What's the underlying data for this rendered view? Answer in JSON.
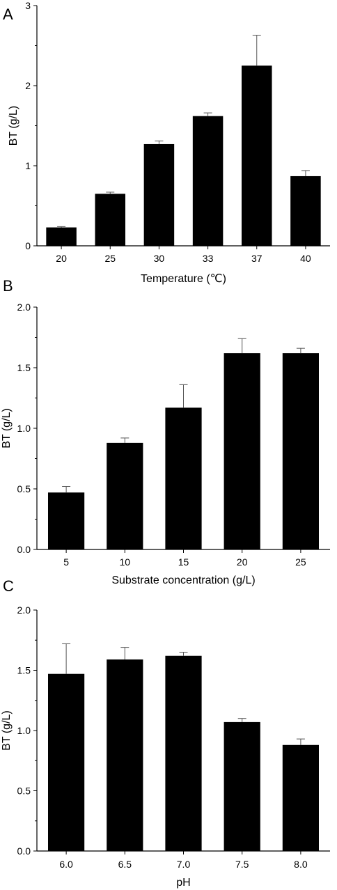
{
  "chart_data": [
    {
      "type": "bar",
      "panel_label": "A",
      "categories": [
        "20",
        "25",
        "30",
        "33",
        "37",
        "40"
      ],
      "values": [
        0.23,
        0.65,
        1.27,
        1.62,
        2.25,
        0.87
      ],
      "errors": [
        0.01,
        0.02,
        0.04,
        0.04,
        0.38,
        0.07
      ],
      "xlabel": "Temperature (℃)",
      "ylabel": "BT (g/L)",
      "ylim": [
        0,
        3
      ],
      "yticks": [
        "0",
        "1",
        "2",
        "3"
      ],
      "bar_color": "#000000",
      "grid": false
    },
    {
      "type": "bar",
      "panel_label": "B",
      "categories": [
        "5",
        "10",
        "15",
        "20",
        "25"
      ],
      "values": [
        0.47,
        0.88,
        1.17,
        1.62,
        1.62
      ],
      "errors": [
        0.05,
        0.04,
        0.19,
        0.12,
        0.04
      ],
      "xlabel": "Substrate concentration (g/L)",
      "ylabel": "BT (g/L)",
      "ylim": [
        0,
        2
      ],
      "yticks": [
        "0.0",
        "0.5",
        "1.0",
        "1.5",
        "2.0"
      ],
      "bar_color": "#000000",
      "grid": false
    },
    {
      "type": "bar",
      "panel_label": "C",
      "categories": [
        "6.0",
        "6.5",
        "7.0",
        "7.5",
        "8.0"
      ],
      "values": [
        1.47,
        1.59,
        1.62,
        1.07,
        0.88
      ],
      "errors": [
        0.25,
        0.1,
        0.03,
        0.03,
        0.05
      ],
      "xlabel": "pH",
      "ylabel": "BT (g/L)",
      "ylim": [
        0,
        2
      ],
      "yticks": [
        "0.0",
        "0.5",
        "1.0",
        "1.5",
        "2.0"
      ],
      "bar_color": "#000000",
      "grid": false
    }
  ]
}
